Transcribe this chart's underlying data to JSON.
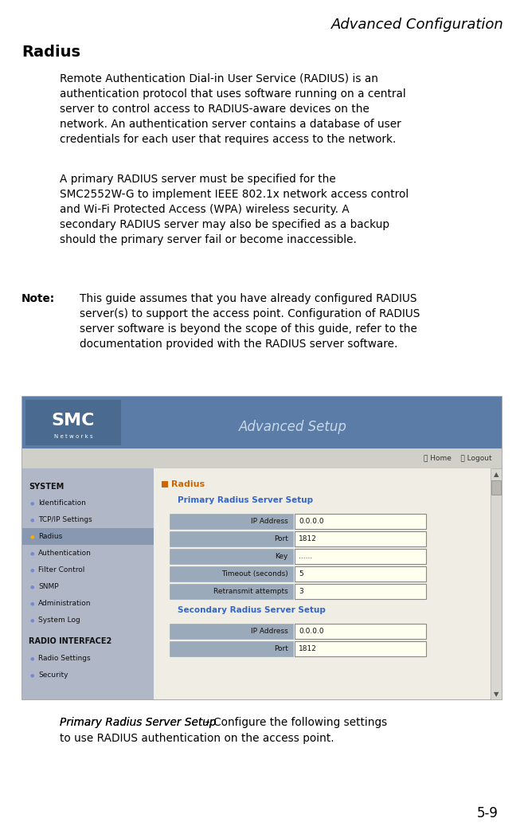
{
  "title": "Advanced Configuration",
  "section_title": "Radius",
  "page_number": "5-9",
  "body_text_1": "Remote Authentication Dial-in User Service (RADIUS) is an\nauthentication protocol that uses software running on a central\nserver to control access to RADIUS-aware devices on the\nnetwork. An authentication server contains a database of user\ncredentials for each user that requires access to the network.",
  "body_text_2": "A primary RADIUS server must be specified for the\nSMC2552W-G to implement IEEE 802.1x network access control\nand Wi-Fi Protected Access (WPA) wireless security. A\nsecondary RADIUS server may also be specified as a backup\nshould the primary server fail or become inaccessible.",
  "note_label": "Note:",
  "note_text": "This guide assumes that you have already configured RADIUS\nserver(s) to support the access point. Configuration of RADIUS\nserver software is beyond the scope of this guide, refer to the\ndocumentation provided with the RADIUS server software.",
  "caption_text_italic": "Primary Radius Server Setup ",
  "caption_text_dash": "–",
  "caption_text_rest": " Configure the following settings\nto use RADIUS authentication on the access point.",
  "bg_color": "#ffffff",
  "text_color": "#000000",
  "title_fontsize": 13,
  "section_fontsize": 14,
  "body_fontsize": 9.8,
  "note_fontsize": 9.8,
  "caption_fontsize": 9.8,
  "pagenum_fontsize": 12,
  "sidebar_items": [
    {
      "label": "SYSTEM",
      "bold": true,
      "bullet": false,
      "highlighted": false
    },
    {
      "label": "Identification",
      "bold": false,
      "bullet": true,
      "highlighted": false
    },
    {
      "label": "TCP/IP Settings",
      "bold": false,
      "bullet": true,
      "highlighted": false
    },
    {
      "label": "Radius",
      "bold": false,
      "bullet": true,
      "highlighted": true
    },
    {
      "label": "Authentication",
      "bold": false,
      "bullet": true,
      "highlighted": false
    },
    {
      "label": "Filter Control",
      "bold": false,
      "bullet": true,
      "highlighted": false
    },
    {
      "label": "SNMP",
      "bold": false,
      "bullet": true,
      "highlighted": false
    },
    {
      "label": "Administration",
      "bold": false,
      "bullet": true,
      "highlighted": false
    },
    {
      "label": "System Log",
      "bold": false,
      "bullet": true,
      "highlighted": false
    },
    {
      "label": "",
      "bold": false,
      "bullet": false,
      "highlighted": false
    },
    {
      "label": "RADIO INTERFACE2",
      "bold": true,
      "bullet": false,
      "highlighted": false
    },
    {
      "label": "Radio Settings",
      "bold": false,
      "bullet": true,
      "highlighted": false
    },
    {
      "label": "Security",
      "bold": false,
      "bullet": true,
      "highlighted": false
    }
  ],
  "primary_fields": [
    {
      "label": "IP Address",
      "value": "0.0.0.0"
    },
    {
      "label": "Port",
      "value": "1812"
    },
    {
      "label": "Key",
      "value": "......"
    },
    {
      "label": "Timeout (seconds)",
      "value": "5"
    },
    {
      "label": "Retransmit attempts",
      "value": "3"
    }
  ],
  "secondary_fields": [
    {
      "label": "IP Address",
      "value": "0.0.0.0"
    },
    {
      "label": "Port",
      "value": "1812"
    }
  ]
}
